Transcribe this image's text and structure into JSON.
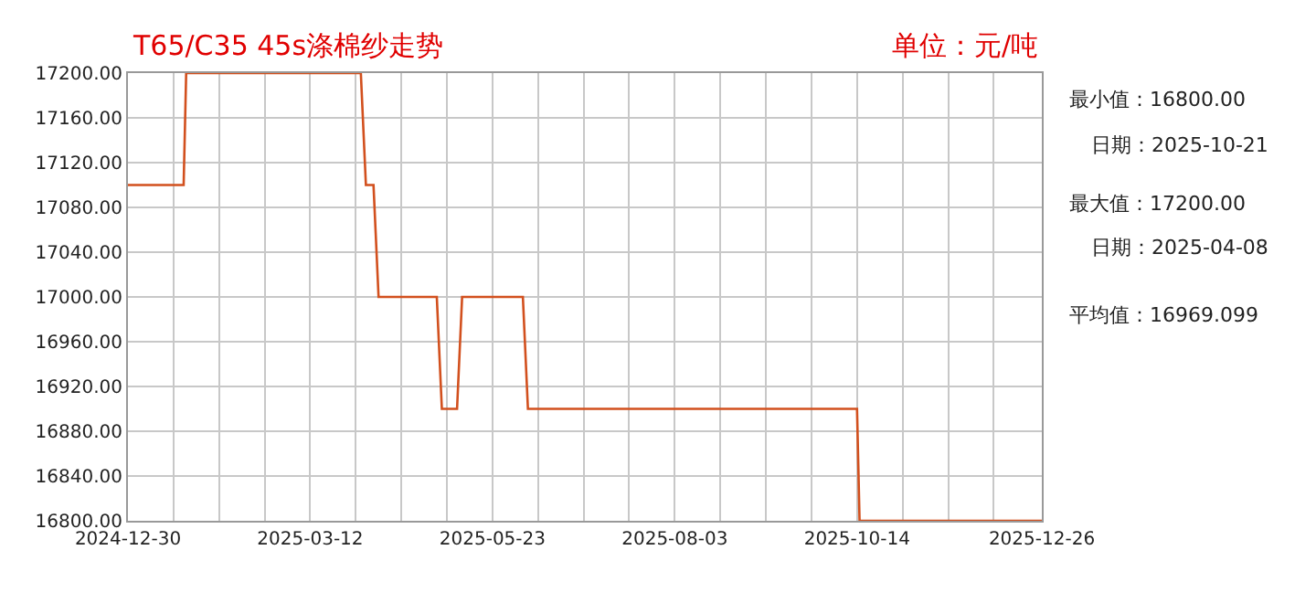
{
  "chart_data": {
    "type": "line",
    "title": "T65/C35 45s涤棉纱走势",
    "subtitle": "单位：元/吨",
    "x": [
      "2024-12-30",
      "2025-01-21",
      "2025-01-22",
      "2025-04-01",
      "2025-04-03",
      "2025-04-06",
      "2025-04-08",
      "2025-05-01",
      "2025-05-03",
      "2025-05-09",
      "2025-05-11",
      "2025-06-04",
      "2025-06-06",
      "2025-10-14",
      "2025-10-15",
      "2025-12-26"
    ],
    "series": [
      {
        "color": "#d2501e",
        "values": [
          17100,
          17100,
          17200,
          17200,
          17100,
          17100,
          17000,
          17000,
          16900,
          16900,
          17000,
          17000,
          16900,
          16900,
          16800,
          16800
        ]
      }
    ],
    "xlim": [
      "2024-12-30",
      "2025-12-26"
    ],
    "xticks": [
      "2024-12-30",
      {
        "value": "2025-01-17",
        "label": null
      },
      {
        "value": "2025-02-04",
        "label": null
      },
      {
        "value": "2025-02-22",
        "label": null
      },
      "2025-03-12",
      {
        "value": "2025-03-30",
        "label": null
      },
      {
        "value": "2025-04-17",
        "label": null
      },
      {
        "value": "2025-05-05",
        "label": null
      },
      "2025-05-23",
      {
        "value": "2025-06-10",
        "label": null
      },
      {
        "value": "2025-06-28",
        "label": null
      },
      {
        "value": "2025-07-16",
        "label": null
      },
      "2025-08-03",
      {
        "value": "2025-08-21",
        "label": null
      },
      {
        "value": "2025-09-08",
        "label": null
      },
      {
        "value": "2025-09-26",
        "label": null
      },
      "2025-10-14",
      {
        "value": "2025-11-01",
        "label": null
      },
      {
        "value": "2025-11-19",
        "label": null
      },
      {
        "value": "2025-12-07",
        "label": null
      },
      "2025-12-26"
    ],
    "ylim": [
      16800,
      17200
    ],
    "yticks": [
      {
        "value": 16800,
        "label": "16800.00"
      },
      {
        "value": 16840,
        "label": "16840.00"
      },
      {
        "value": 16880,
        "label": "16880.00"
      },
      {
        "value": 16920,
        "label": "16920.00"
      },
      {
        "value": 16960,
        "label": "16960.00"
      },
      {
        "value": 17000,
        "label": "17000.00"
      },
      {
        "value": 17040,
        "label": "17040.00"
      },
      {
        "value": 17080,
        "label": "17080.00"
      },
      {
        "value": 17120,
        "label": "17120.00"
      },
      {
        "value": 17160,
        "label": "17160.00"
      },
      {
        "value": 17200,
        "label": "17200.00"
      }
    ],
    "grid": true,
    "legend": false,
    "marker": "none",
    "line_style": "solid",
    "annotations": [
      "最小值：16800.00",
      "日期：2025-10-21",
      "最大值：17200.00",
      "日期：2025-04-08",
      "平均值：16969.099"
    ]
  }
}
